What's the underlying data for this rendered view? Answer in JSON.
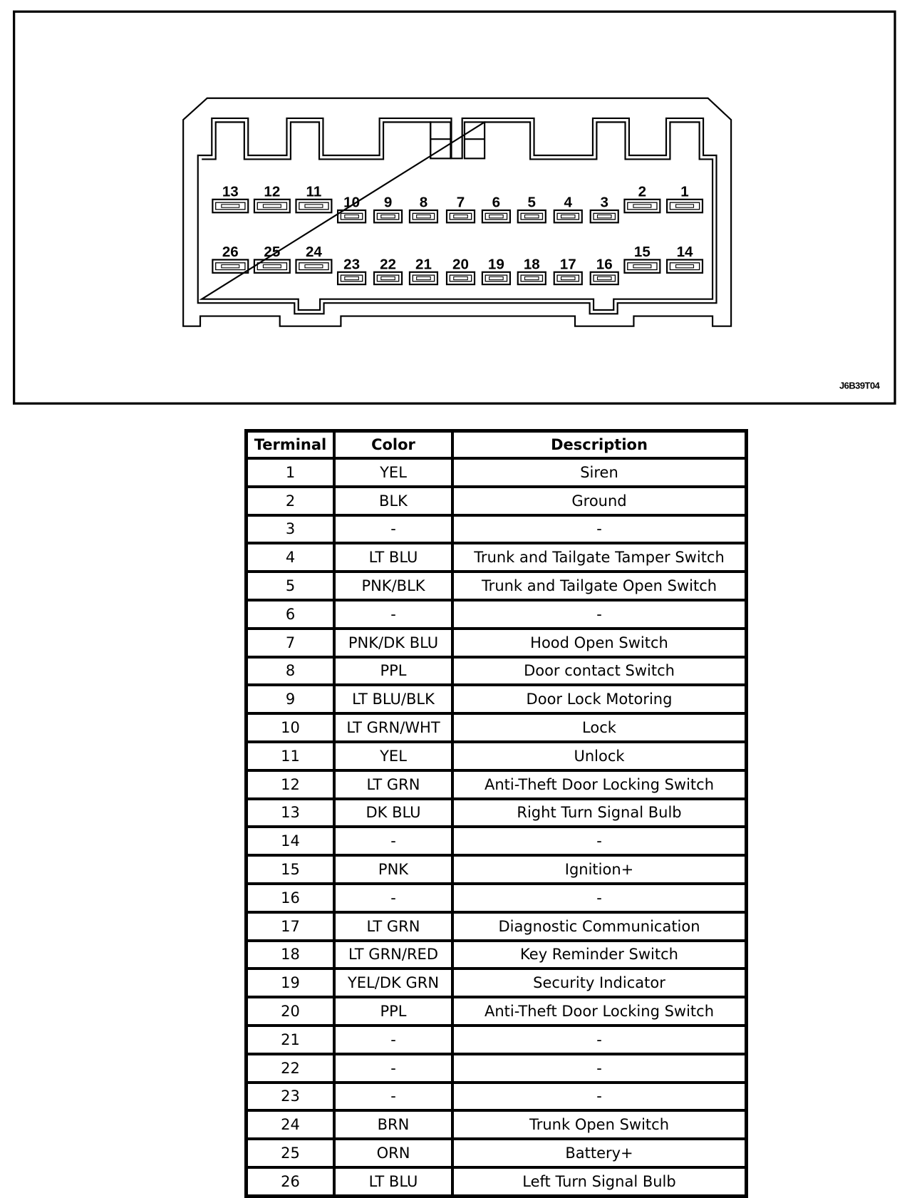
{
  "diagram": {
    "code": "J6B39T04",
    "pins_top_row": [
      "13",
      "12",
      "11",
      "10",
      "9",
      "8",
      "7",
      "6",
      "5",
      "4",
      "3",
      "2",
      "1"
    ],
    "pins_bottom_row": [
      "26",
      "25",
      "24",
      "23",
      "22",
      "21",
      "20",
      "19",
      "18",
      "17",
      "16",
      "15",
      "14"
    ]
  },
  "table": {
    "headers": [
      "Terminal",
      "Color",
      "Description"
    ],
    "rows": [
      [
        "1",
        "YEL",
        "Siren"
      ],
      [
        "2",
        "BLK",
        "Ground"
      ],
      [
        "3",
        "-",
        "-"
      ],
      [
        "4",
        "LT BLU",
        "Trunk and Tailgate Tamper Switch"
      ],
      [
        "5",
        "PNK/BLK",
        "Trunk and Tailgate Open Switch"
      ],
      [
        "6",
        "-",
        "-"
      ],
      [
        "7",
        "PNK/DK BLU",
        "Hood Open Switch"
      ],
      [
        "8",
        "PPL",
        "Door contact Switch"
      ],
      [
        "9",
        "LT BLU/BLK",
        "Door Lock Motoring"
      ],
      [
        "10",
        "LT GRN/WHT",
        "Lock"
      ],
      [
        "11",
        "YEL",
        "Unlock"
      ],
      [
        "12",
        "LT GRN",
        "Anti-Theft Door Locking Switch"
      ],
      [
        "13",
        "DK BLU",
        "Right Turn Signal Bulb"
      ],
      [
        "14",
        "-",
        "-"
      ],
      [
        "15",
        "PNK",
        "Ignition+"
      ],
      [
        "16",
        "-",
        "-"
      ],
      [
        "17",
        "LT GRN",
        "Diagnostic Communication"
      ],
      [
        "18",
        "LT GRN/RED",
        "Key Reminder Switch"
      ],
      [
        "19",
        "YEL/DK GRN",
        "Security Indicator"
      ],
      [
        "20",
        "PPL",
        "Anti-Theft Door Locking Switch"
      ],
      [
        "21",
        "-",
        "-"
      ],
      [
        "22",
        "-",
        "-"
      ],
      [
        "23",
        "-",
        "-"
      ],
      [
        "24",
        "BRN",
        "Trunk Open Switch"
      ],
      [
        "25",
        "ORN",
        "Battery+"
      ],
      [
        "26",
        "LT BLU",
        "Left Turn Signal Bulb"
      ]
    ]
  }
}
